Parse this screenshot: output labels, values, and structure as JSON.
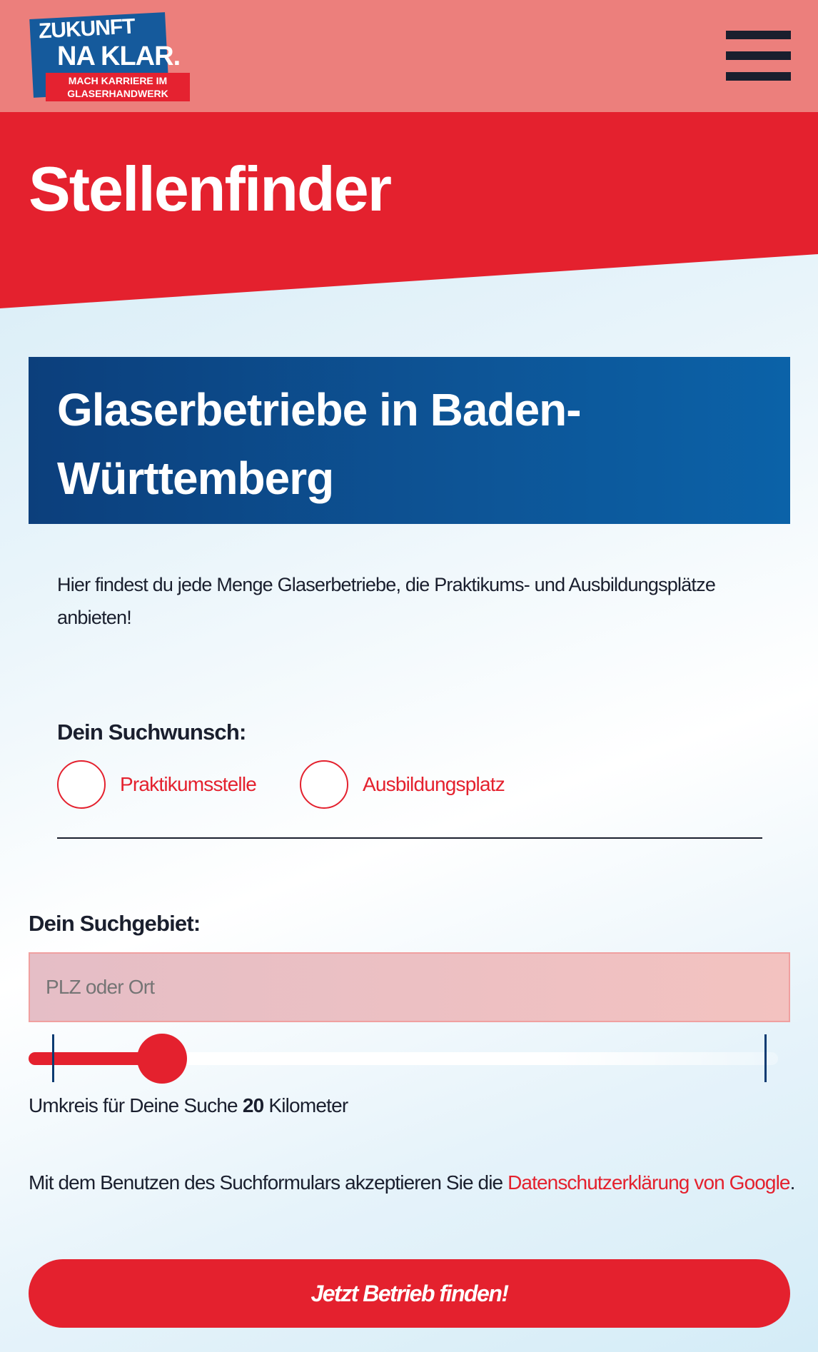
{
  "header": {
    "logo": {
      "line1": "ZUKUNFT",
      "line2": "NA KLAR.",
      "line3": "MACH KARRIERE IM",
      "line4": "GLASERHANDWERK"
    },
    "menu_icon": "hamburger-icon"
  },
  "hero": {
    "title": "Stellenfinder"
  },
  "region": {
    "title": "Glaserbetriebe in Baden-Württemberg"
  },
  "intro": "Hier findest du jede Menge Glaserbetriebe, die Praktikums- und Ausbildungsplätze anbieten!",
  "search_type": {
    "label": "Dein Suchwunsch:",
    "options": [
      {
        "label": "Praktikumsstelle",
        "checked": false
      },
      {
        "label": "Ausbildungsplatz",
        "checked": false
      }
    ]
  },
  "search_area": {
    "label": "Dein Suchgebiet:",
    "placeholder": "PLZ oder Ort",
    "value": ""
  },
  "radius": {
    "prefix": "Umkreis für Deine Suche",
    "value": "20",
    "unit": "Kilometer"
  },
  "privacy": {
    "text": "Mit dem Benutzen des Suchformulars akzeptieren Sie die",
    "link": "Datenschutzerklärung von Google",
    "suffix": "."
  },
  "submit_label": "Jetzt Betrieb finden!",
  "colors": {
    "accent": "#e4212e",
    "header": "#ec7f7c",
    "blue": "#0d5597",
    "text": "#1a1f2e"
  }
}
